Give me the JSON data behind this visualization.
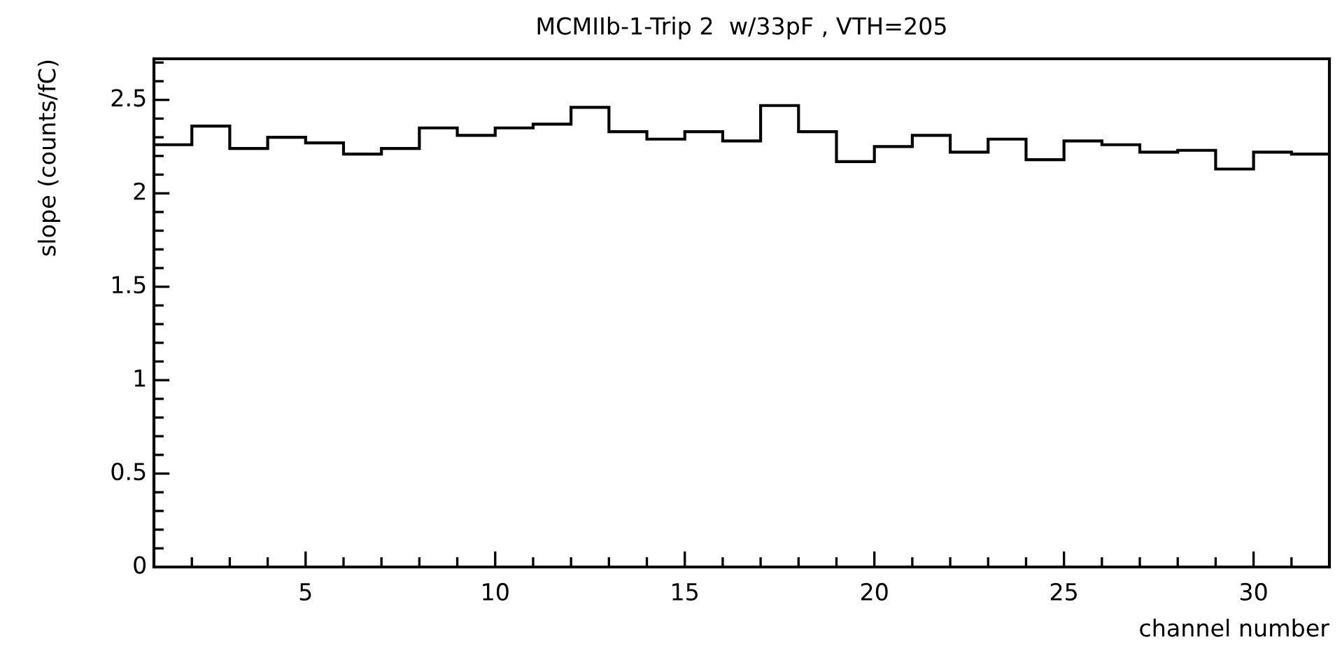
{
  "chart_data": {
    "type": "histogram",
    "title": "MCMIIb-1-Trip 2  w/33pF , VTH=205",
    "xlabel": "channel number",
    "ylabel": "slope (counts/fC)",
    "bins": [
      1,
      2,
      3,
      4,
      5,
      6,
      7,
      8,
      9,
      10,
      11,
      12,
      13,
      14,
      15,
      16,
      17,
      18,
      19,
      20,
      21,
      22,
      23,
      24,
      25,
      26,
      27,
      28,
      29,
      30,
      31,
      32
    ],
    "values": [
      2.26,
      2.36,
      2.24,
      2.3,
      2.27,
      2.21,
      2.24,
      2.35,
      2.31,
      2.35,
      2.37,
      2.46,
      2.33,
      2.29,
      2.33,
      2.28,
      2.47,
      2.33,
      2.17,
      2.25,
      2.31,
      2.22,
      2.29,
      2.18,
      2.28,
      2.26,
      2.22,
      2.23,
      2.13,
      2.22,
      2.21
    ],
    "color": "#000000",
    "xlim": [
      1,
      32
    ],
    "xticks": [
      {
        "value": 1,
        "label": null
      },
      {
        "value": 2,
        "label": null
      },
      {
        "value": 3,
        "label": null
      },
      {
        "value": 4,
        "label": null
      },
      5,
      {
        "value": 6,
        "label": null
      },
      {
        "value": 7,
        "label": null
      },
      {
        "value": 8,
        "label": null
      },
      {
        "value": 9,
        "label": null
      },
      10,
      {
        "value": 11,
        "label": null
      },
      {
        "value": 12,
        "label": null
      },
      {
        "value": 13,
        "label": null
      },
      {
        "value": 14,
        "label": null
      },
      15,
      {
        "value": 16,
        "label": null
      },
      {
        "value": 17,
        "label": null
      },
      {
        "value": 18,
        "label": null
      },
      {
        "value": 19,
        "label": null
      },
      20,
      {
        "value": 21,
        "label": null
      },
      {
        "value": 22,
        "label": null
      },
      {
        "value": 23,
        "label": null
      },
      {
        "value": 24,
        "label": null
      },
      25,
      {
        "value": 26,
        "label": null
      },
      {
        "value": 27,
        "label": null
      },
      {
        "value": 28,
        "label": null
      },
      {
        "value": 29,
        "label": null
      },
      30,
      {
        "value": 31,
        "label": null
      },
      {
        "value": 32,
        "label": null
      }
    ],
    "ylim": [
      0,
      2.72
    ],
    "yticks": [
      0,
      {
        "value": 0.1,
        "label": null
      },
      {
        "value": 0.2,
        "label": null
      },
      {
        "value": 0.3,
        "label": null
      },
      {
        "value": 0.4,
        "label": null
      },
      0.5,
      {
        "value": 0.6,
        "label": null
      },
      {
        "value": 0.7,
        "label": null
      },
      {
        "value": 0.8,
        "label": null
      },
      {
        "value": 0.9,
        "label": null
      },
      1,
      {
        "value": 1.1,
        "label": null
      },
      {
        "value": 1.2,
        "label": null
      },
      {
        "value": 1.3,
        "label": null
      },
      {
        "value": 1.4,
        "label": null
      },
      1.5,
      {
        "value": 1.6,
        "label": null
      },
      {
        "value": 1.7,
        "label": null
      },
      {
        "value": 1.8,
        "label": null
      },
      {
        "value": 1.9,
        "label": null
      },
      2,
      {
        "value": 2.1,
        "label": null
      },
      {
        "value": 2.2,
        "label": null
      },
      {
        "value": 2.3,
        "label": null
      },
      {
        "value": 2.4,
        "label": null
      },
      2.5,
      {
        "value": 2.6,
        "label": null
      },
      {
        "value": 2.7,
        "label": null
      }
    ],
    "grid": false,
    "legend": false
  }
}
